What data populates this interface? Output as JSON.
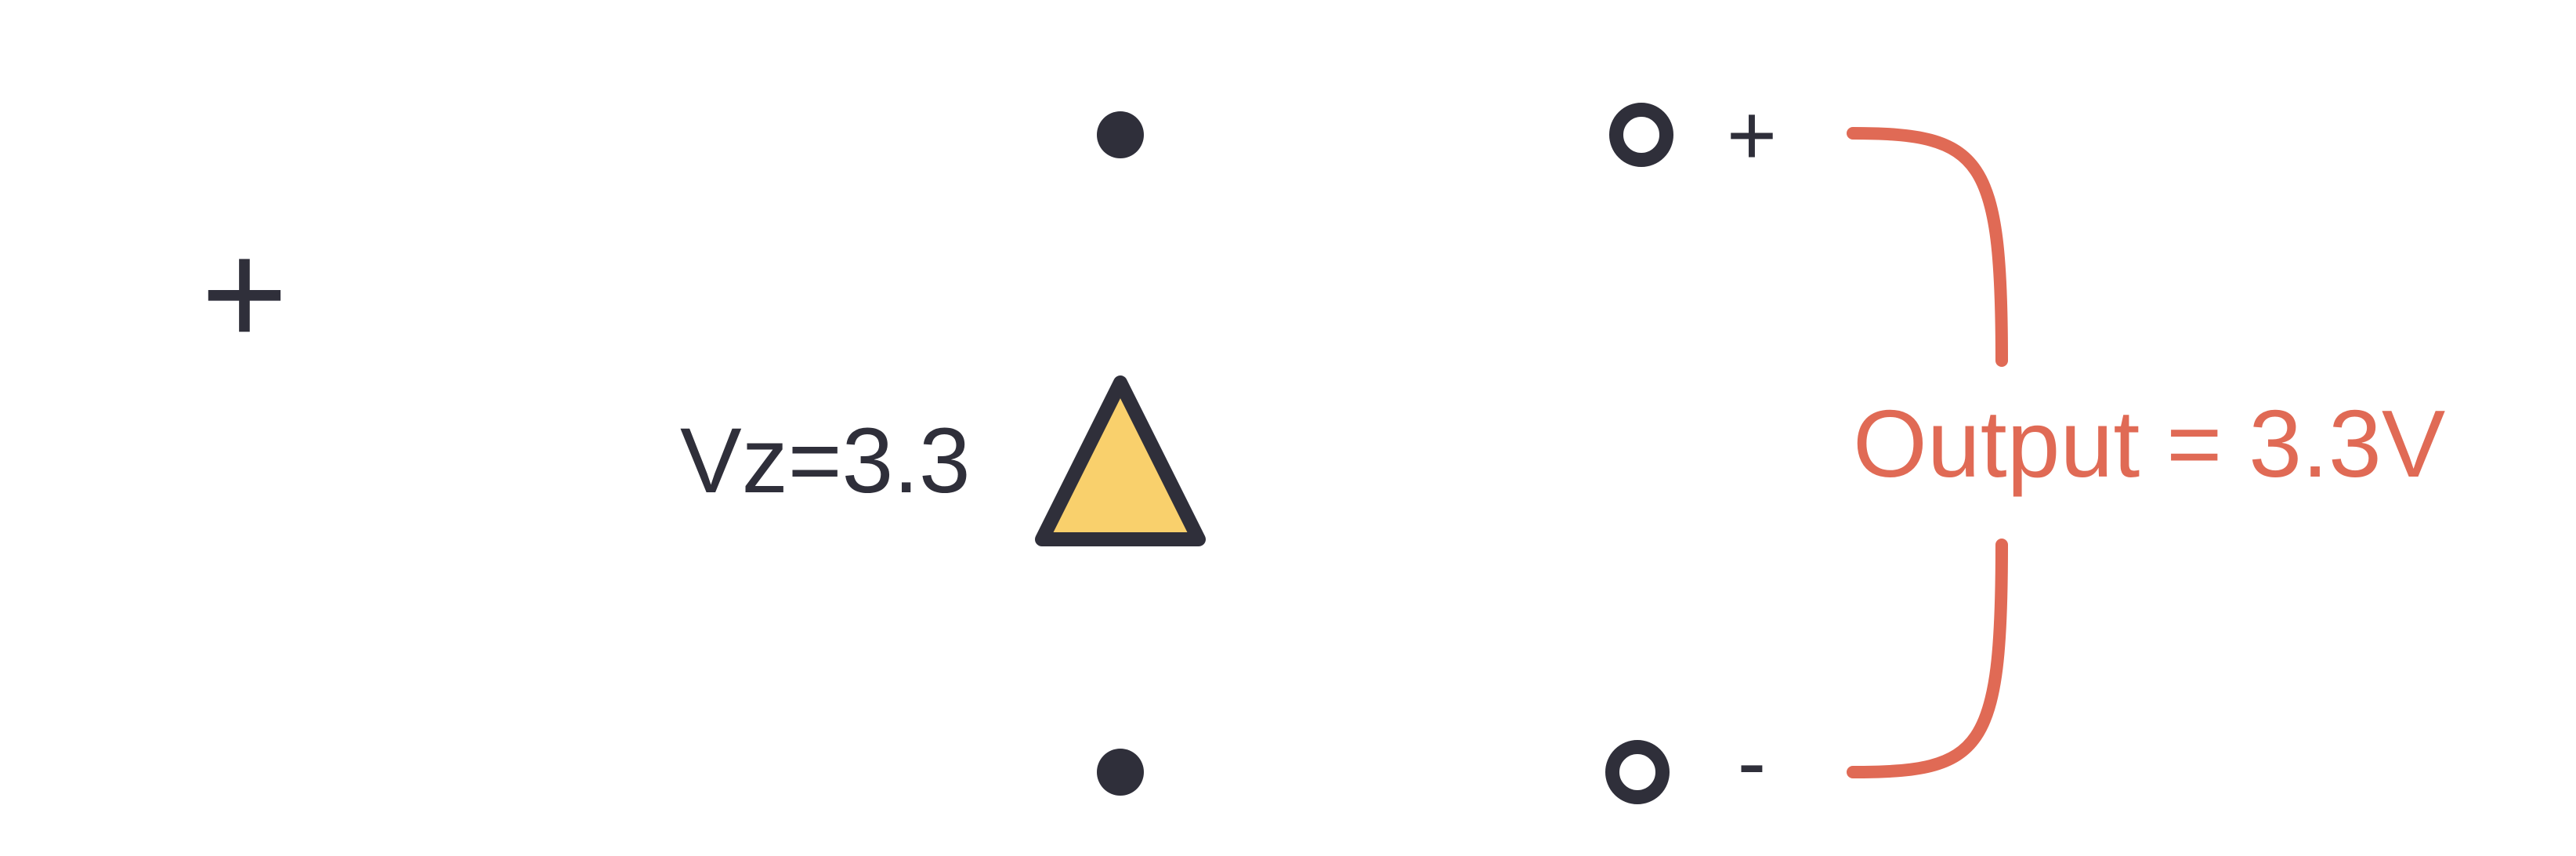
{
  "diagram": {
    "zener_label": "Vz=3.3",
    "terminal_plus": "+",
    "terminal_minus": "-",
    "battery_plus": "+",
    "output_label": "Output = 3.3V"
  },
  "colors": {
    "wire": "#2f2f3a",
    "output": "#e06a55",
    "diode_fill": "#f9d06c",
    "background": "#ffffff"
  }
}
